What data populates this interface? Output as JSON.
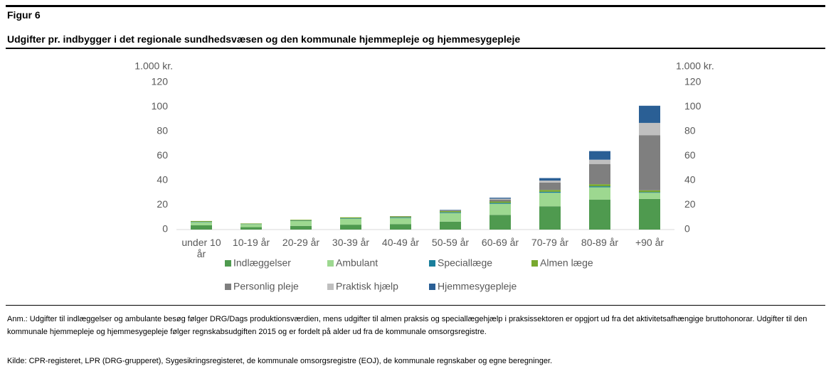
{
  "figure_label": "Figur 6",
  "chart_data": {
    "type": "stacked_bar",
    "title": "Udgifter pr. indbygger i det regionale sundhedsvæsen og den kommunale hjemmepleje og hjemmesygepleje",
    "y_label": "1.000 kr.",
    "y2_label": "1.000 kr.",
    "categories": [
      "under 10 år",
      "10-19 år",
      "20-29 år",
      "30-39 år",
      "40-49 år",
      "50-59 år",
      "60-69 år",
      "70-79 år",
      "80-89 år",
      "+90 år"
    ],
    "series": [
      {
        "name": "Indlæggelser",
        "color": "#4f9a4f",
        "values": [
          3.5,
          2,
          3,
          4,
          4.5,
          6.5,
          12,
          19,
          24.5,
          25
        ]
      },
      {
        "name": "Ambulant",
        "color": "#9dd890",
        "values": [
          2.5,
          2.3,
          4,
          4.8,
          5,
          7,
          9,
          11,
          10,
          5
        ]
      },
      {
        "name": "Speciallæge",
        "color": "#1a7f9c",
        "values": [
          0.3,
          0.2,
          0.3,
          0.4,
          0.5,
          0.6,
          0.7,
          0.8,
          0.8,
          0.5
        ]
      },
      {
        "name": "Almen læge",
        "color": "#78a92f",
        "values": [
          0.7,
          0.5,
          0.7,
          0.8,
          0.8,
          1,
          1.2,
          1.5,
          1.7,
          1.5
        ]
      },
      {
        "name": "Personlig pleje",
        "color": "#7f7f7f",
        "values": [
          0,
          0,
          0,
          0,
          0.2,
          0.5,
          1.5,
          6,
          16.5,
          45
        ]
      },
      {
        "name": "Praktisk hjælp",
        "color": "#bfbfbf",
        "values": [
          0,
          0,
          0,
          0,
          0,
          0.3,
          0.8,
          1.7,
          3.5,
          10
        ]
      },
      {
        "name": "Hjemmesygepleje",
        "color": "#2a5f95",
        "values": [
          0,
          0,
          0,
          0,
          0,
          0.3,
          0.8,
          2,
          7,
          14
        ]
      }
    ],
    "ylim": [
      0,
      120
    ],
    "yticks": [
      0,
      20,
      40,
      60,
      80,
      100,
      120
    ],
    "y2lim": [
      0,
      120
    ],
    "y2ticks": [
      0,
      20,
      40,
      60,
      80,
      100,
      120
    ],
    "grid": false,
    "legend": "bottom"
  },
  "notes": [
    "Anm.: Udgifter til indlæggelser og ambulante besøg følger DRG/Dags produktionsværdien, mens udgifter til almen praksis og speciallægehjælp i praksissektoren er opgjort ud fra det aktivitetsafhængige bruttohonorar. Udgifter til den kommunale hjemmepleje og hjemmesygepleje følger regnskabsudgiften 2015 og er fordelt på alder ud fra de kommunale omsorgsregistre.",
    "Kilde: CPR-registeret, LPR (DRG-grupperet), Sygesikringsregisteret, de kommunale omsorgsregistre (EOJ), de kommunale regnskaber og egne beregninger."
  ]
}
